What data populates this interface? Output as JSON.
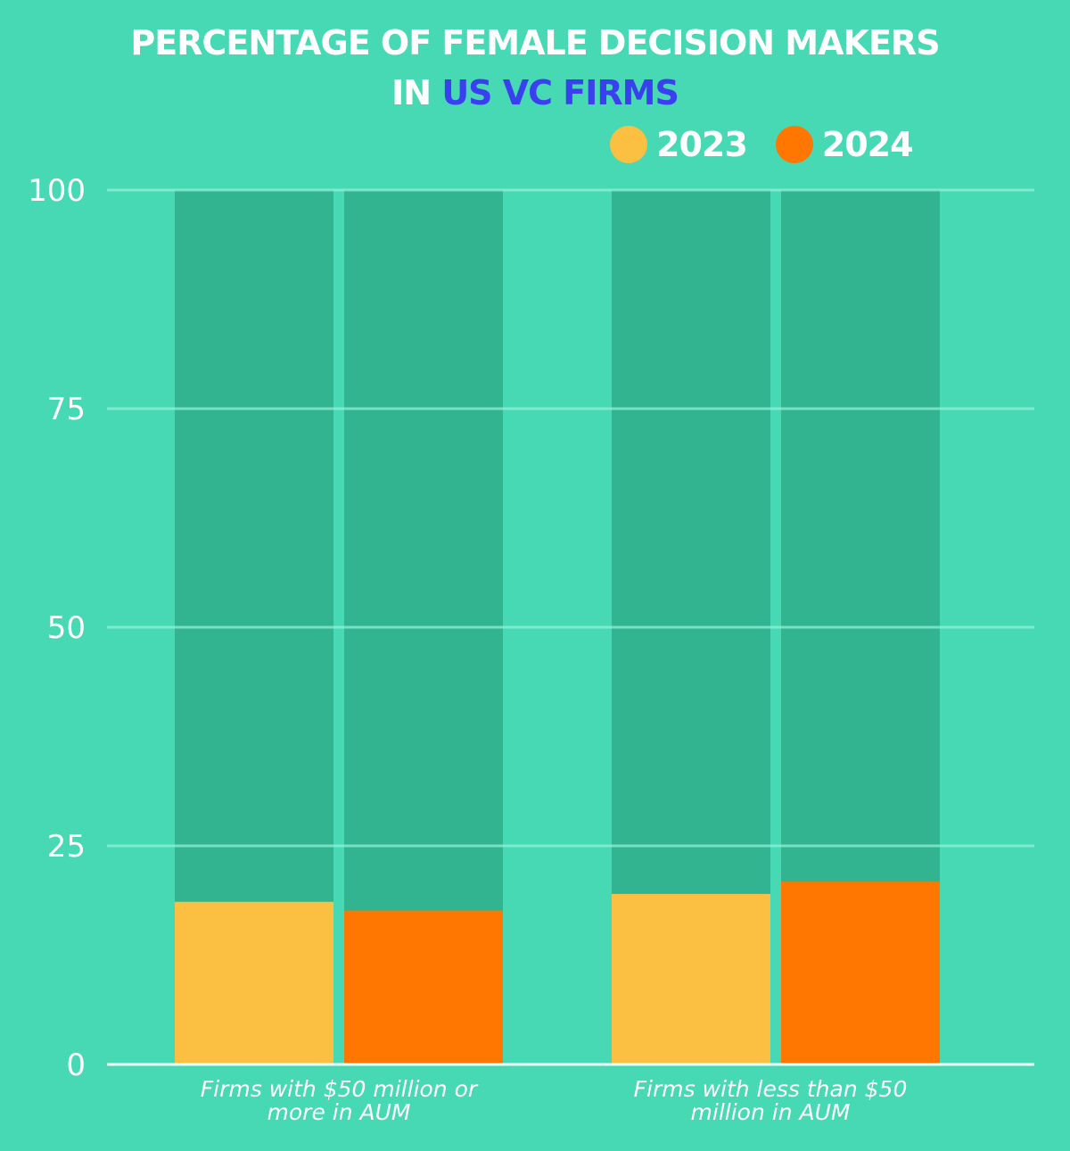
{
  "title": {
    "line1": "PERCENTAGE OF FEMALE DECISION MAKERS",
    "line2_prefix": "IN ",
    "line2_accent": "US VC FIRMS"
  },
  "colors": {
    "background": "#47d9b3",
    "bar_track": "#33b491",
    "gridline": "#8ff0d4",
    "accent_text": "#3a3ff0",
    "series_2023": "#fbbf41",
    "series_2024": "#ff7700"
  },
  "chart_data": {
    "type": "bar",
    "title": "Percentage of Female Decision Makers in US VC Firms",
    "xlabel": "",
    "ylabel": "",
    "categories": [
      "Firms with $50 million or more in AUM",
      "Firms with less than $50 million in AUM"
    ],
    "series": [
      {
        "name": "2023",
        "values": [
          18.6,
          19.5
        ]
      },
      {
        "name": "2024",
        "values": [
          17.6,
          20.9
        ]
      }
    ],
    "background_track_value": 100,
    "ylim": [
      0,
      100
    ],
    "yticks": [
      0,
      25,
      50,
      75,
      100
    ],
    "grid": true,
    "legend": "top-right"
  },
  "legend": [
    {
      "label": "2023"
    },
    {
      "label": "2024"
    }
  ],
  "xlabels": [
    {
      "line1": "Firms with $50 million or",
      "line2": "more in AUM"
    },
    {
      "line1": "Firms with less than $50",
      "line2": "million in AUM"
    }
  ]
}
